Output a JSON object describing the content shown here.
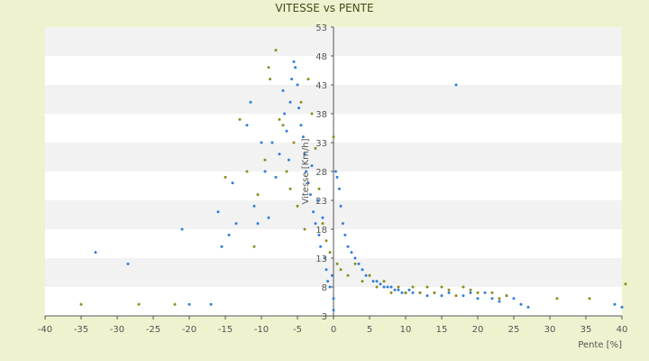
{
  "chart_data": {
    "type": "scatter",
    "title": "VITESSE vs PENTE",
    "xlabel": "Pente [%]",
    "ylabel": "Vitesse [Km/h]",
    "xlim": [
      -40,
      40
    ],
    "ylim": [
      3,
      53
    ],
    "x_ticks": [
      -40,
      -35,
      -30,
      -25,
      -20,
      -15,
      -10,
      -5,
      0,
      5,
      10,
      15,
      20,
      25,
      30,
      35,
      40
    ],
    "y_ticks": [
      3,
      8,
      13,
      18,
      23,
      28,
      33,
      38,
      43,
      48,
      53
    ],
    "banded_background": true,
    "legend": "none",
    "colors": {
      "series_blue": "#2f7ed8",
      "series_olive": "#8c8c1e",
      "band_light": "#ffffff",
      "band_dark": "#f2f2f2"
    },
    "series": [
      {
        "color": "#2f7ed8",
        "points": [
          [
            -33,
            14
          ],
          [
            -28.5,
            12
          ],
          [
            -21,
            18
          ],
          [
            -20,
            5
          ],
          [
            -17,
            5
          ],
          [
            -16,
            21
          ],
          [
            -15.5,
            15
          ],
          [
            -14.5,
            17
          ],
          [
            -14,
            26
          ],
          [
            -13.5,
            19
          ],
          [
            -12,
            36
          ],
          [
            -11.5,
            40
          ],
          [
            -11,
            22
          ],
          [
            -10.5,
            19
          ],
          [
            -10,
            33
          ],
          [
            -9.5,
            28
          ],
          [
            -9,
            20
          ],
          [
            -8.5,
            33
          ],
          [
            -8,
            27
          ],
          [
            -7.5,
            31
          ],
          [
            -7,
            42
          ],
          [
            -6.8,
            38
          ],
          [
            -6.5,
            35
          ],
          [
            -6.2,
            30
          ],
          [
            -6,
            40
          ],
          [
            -5.8,
            44
          ],
          [
            -5.5,
            47
          ],
          [
            -5.3,
            46
          ],
          [
            -5,
            43
          ],
          [
            -4.8,
            39
          ],
          [
            -4.5,
            36
          ],
          [
            -4.2,
            34
          ],
          [
            -4,
            31
          ],
          [
            -3.8,
            28
          ],
          [
            -3.5,
            26
          ],
          [
            -3.2,
            24
          ],
          [
            -3,
            29
          ],
          [
            -2.8,
            21
          ],
          [
            -2.5,
            19
          ],
          [
            -2.2,
            23
          ],
          [
            -2,
            17
          ],
          [
            -1.8,
            15
          ],
          [
            -1.5,
            20
          ],
          [
            -1.2,
            13
          ],
          [
            -1,
            11
          ],
          [
            -0.8,
            9
          ],
          [
            -0.5,
            8
          ],
          [
            -0.2,
            10
          ],
          [
            0,
            4
          ],
          [
            0,
            6
          ],
          [
            0.3,
            28
          ],
          [
            0.5,
            27
          ],
          [
            0.8,
            25
          ],
          [
            1,
            22
          ],
          [
            1.3,
            19
          ],
          [
            1.6,
            17
          ],
          [
            2,
            15
          ],
          [
            2.5,
            14
          ],
          [
            3,
            13
          ],
          [
            3.5,
            12
          ],
          [
            4,
            11
          ],
          [
            4.5,
            10
          ],
          [
            5,
            10
          ],
          [
            5.5,
            9
          ],
          [
            6,
            9
          ],
          [
            6.5,
            8.5
          ],
          [
            7,
            8
          ],
          [
            7.5,
            8
          ],
          [
            8,
            8
          ],
          [
            8.5,
            7.5
          ],
          [
            9,
            7.5
          ],
          [
            9.5,
            7
          ],
          [
            10,
            7
          ],
          [
            10.5,
            7.5
          ],
          [
            11,
            7
          ],
          [
            12,
            7
          ],
          [
            13,
            6.5
          ],
          [
            14,
            7
          ],
          [
            15,
            6.5
          ],
          [
            16,
            7
          ],
          [
            17,
            43
          ],
          [
            18,
            6.5
          ],
          [
            19,
            7
          ],
          [
            20,
            6
          ],
          [
            21,
            7
          ],
          [
            22,
            6
          ],
          [
            23,
            5.5
          ],
          [
            24,
            6.5
          ],
          [
            25,
            6
          ],
          [
            26,
            5
          ],
          [
            27,
            4.5
          ],
          [
            39,
            5
          ],
          [
            40,
            4.5
          ]
        ]
      },
      {
        "color": "#8c8c1e",
        "points": [
          [
            -35,
            5
          ],
          [
            -27,
            5
          ],
          [
            -22,
            5
          ],
          [
            -15,
            27
          ],
          [
            -13,
            37
          ],
          [
            -12,
            28
          ],
          [
            -11,
            15
          ],
          [
            -10.5,
            24
          ],
          [
            -9.5,
            30
          ],
          [
            -9,
            46
          ],
          [
            -8.8,
            44
          ],
          [
            -8,
            49
          ],
          [
            -7.5,
            37
          ],
          [
            -7,
            36
          ],
          [
            -6.5,
            28
          ],
          [
            -6,
            25
          ],
          [
            -5.5,
            33
          ],
          [
            -5,
            22
          ],
          [
            -4.5,
            40
          ],
          [
            -4,
            18
          ],
          [
            -3.5,
            44
          ],
          [
            -3,
            38
          ],
          [
            -2.5,
            32
          ],
          [
            -2,
            25
          ],
          [
            -1.5,
            19
          ],
          [
            -1,
            16
          ],
          [
            -0.5,
            14
          ],
          [
            0,
            34
          ],
          [
            0.5,
            12
          ],
          [
            1,
            11
          ],
          [
            2,
            10
          ],
          [
            3,
            12
          ],
          [
            4,
            9
          ],
          [
            5,
            10
          ],
          [
            6,
            8
          ],
          [
            7,
            9
          ],
          [
            8,
            7
          ],
          [
            9,
            8
          ],
          [
            10,
            7
          ],
          [
            11,
            8
          ],
          [
            12,
            7
          ],
          [
            13,
            8
          ],
          [
            14,
            7
          ],
          [
            15,
            8
          ],
          [
            16,
            7.5
          ],
          [
            17,
            6.5
          ],
          [
            18,
            8
          ],
          [
            19,
            7.5
          ],
          [
            20,
            7
          ],
          [
            22,
            7
          ],
          [
            23,
            6
          ],
          [
            24,
            6.5
          ],
          [
            31,
            6
          ],
          [
            35.5,
            6
          ],
          [
            40.5,
            8.5
          ]
        ]
      }
    ]
  }
}
